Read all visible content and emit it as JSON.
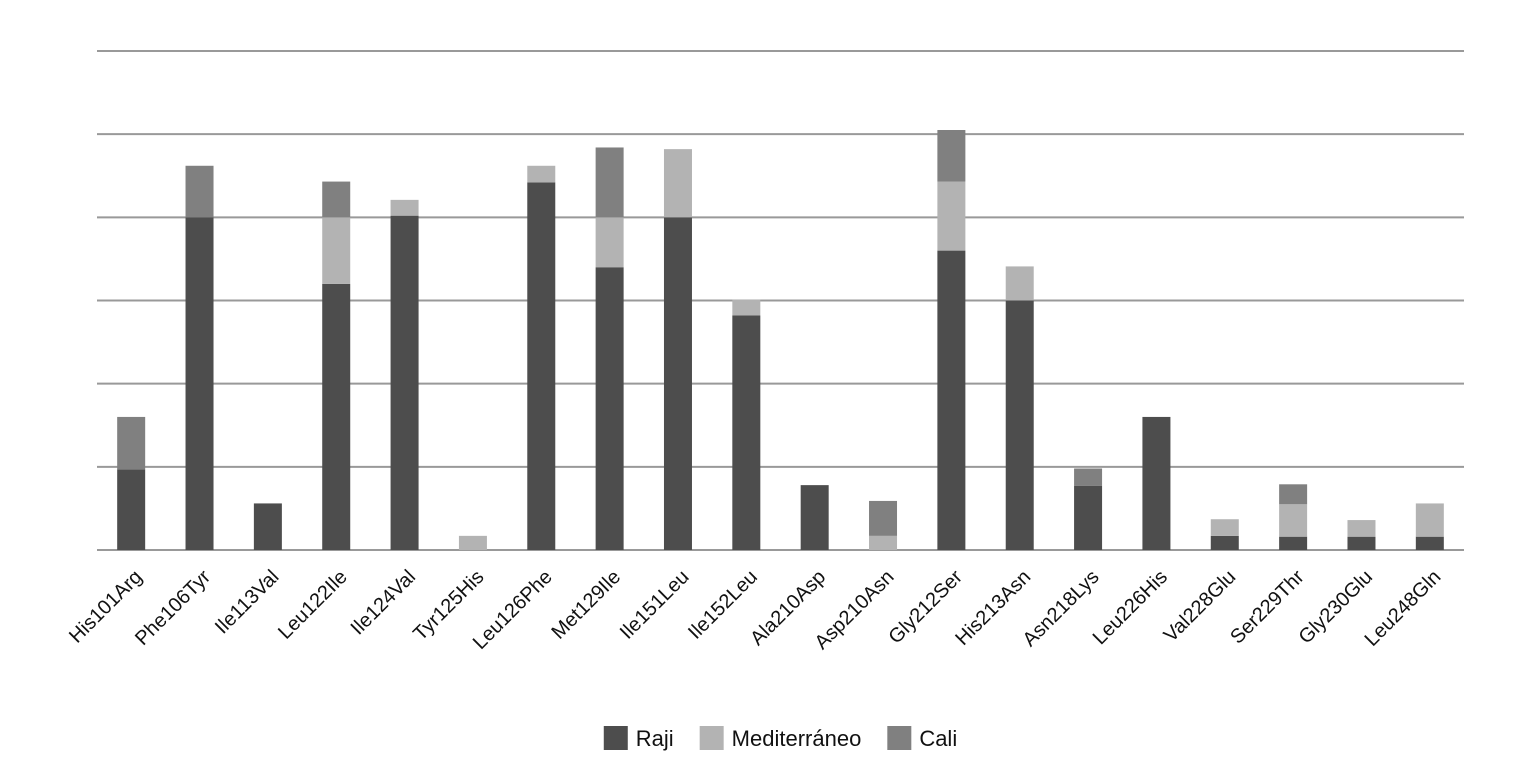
{
  "chart_data": {
    "type": "bar",
    "stacked": true,
    "title": "",
    "xlabel": "",
    "ylabel": "",
    "ylim": [
      0,
      6
    ],
    "y_gridlines": [
      0,
      1,
      2,
      3,
      4,
      5,
      6
    ],
    "y_tick_labels_shown": false,
    "grid": true,
    "legend_position": "bottom-center",
    "categories": [
      "His101Arg",
      "Phe106Tyr",
      "Ile113Val",
      "Leu122Ile",
      "Ile124Val",
      "Tyr125His",
      "Leu126Phe",
      "Met129Ile",
      "Ile151Leu",
      "Ile152Leu",
      "Ala210Asp",
      "Asp210Asn",
      "Gly212Ser",
      "His213Asn",
      "Asn218Lys",
      "Leu226His",
      "Val228Glu",
      "Ser229Thr",
      "Gly230Glu",
      "Leu248Gln"
    ],
    "series": [
      {
        "name": "Raji",
        "color": "#4d4d4d",
        "values": [
          0.97,
          4.0,
          0.56,
          3.2,
          4.02,
          0,
          4.42,
          3.4,
          4.0,
          2.82,
          0.78,
          0,
          3.6,
          3.0,
          0.77,
          1.6,
          0.17,
          0.16,
          0.16,
          0.16
        ]
      },
      {
        "name": "Mediterráneo",
        "color": "#b3b3b3",
        "values": [
          0,
          0,
          0,
          0.8,
          0.19,
          0.17,
          0.2,
          0.6,
          0.82,
          0.19,
          0,
          0.17,
          0.83,
          0.41,
          0,
          0,
          0.2,
          0.39,
          0.2,
          0.4
        ]
      },
      {
        "name": "Cali",
        "color": "#808080",
        "values": [
          0.63,
          0.62,
          0,
          0.43,
          0,
          0,
          0,
          0.84,
          0,
          0,
          0,
          0.42,
          0.62,
          0,
          0.21,
          0,
          0,
          0.24,
          0,
          0
        ]
      }
    ]
  }
}
